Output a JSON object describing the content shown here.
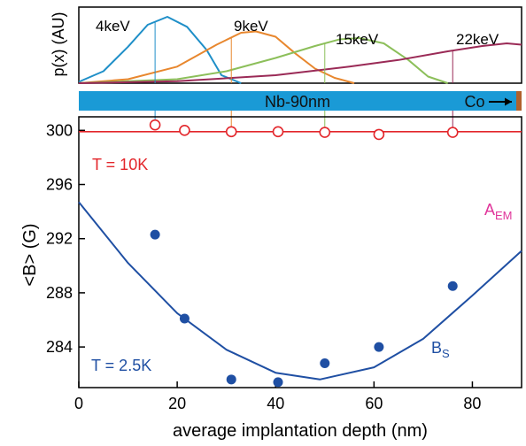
{
  "chart_data": [
    {
      "type": "line",
      "ylabel": "p(x) (AU)",
      "colors": {
        "4keV": "#1f8fc8",
        "9keV": "#e8872e",
        "15keV": "#8cbf5a",
        "22keV": "#9a2a56"
      },
      "series": [
        {
          "name": "4keV",
          "peak_depth": 18,
          "values_x": [
            0,
            5,
            10,
            14,
            18,
            22,
            26,
            29,
            33
          ],
          "values_y": [
            0.02,
            0.18,
            0.55,
            0.88,
            1.0,
            0.85,
            0.5,
            0.12,
            0.0
          ]
        },
        {
          "name": "9keV",
          "peak_depth": 36,
          "values_x": [
            0,
            10,
            20,
            28,
            33,
            36,
            40,
            44,
            48,
            52,
            56
          ],
          "values_y": [
            0.0,
            0.06,
            0.25,
            0.58,
            0.76,
            0.78,
            0.7,
            0.45,
            0.22,
            0.08,
            0.0
          ]
        },
        {
          "name": "15keV",
          "peak_depth": 57,
          "values_x": [
            0,
            20,
            30,
            40,
            48,
            53,
            57,
            62,
            67,
            71,
            75
          ],
          "values_y": [
            0.0,
            0.06,
            0.18,
            0.38,
            0.56,
            0.66,
            0.68,
            0.6,
            0.35,
            0.1,
            0.0
          ]
        },
        {
          "name": "22keV",
          "peak_depth": 88,
          "values_x": [
            0,
            20,
            40,
            55,
            65,
            75,
            82,
            87,
            90
          ],
          "values_y": [
            0.0,
            0.03,
            0.12,
            0.25,
            0.35,
            0.48,
            0.56,
            0.6,
            0.58
          ]
        }
      ],
      "mean_depths": [
        15.5,
        21.5,
        31,
        50,
        76
      ]
    },
    {
      "type": "scatter",
      "bar": {
        "label": "Nb-90nm",
        "co_label": "Co",
        "bar_color": "#1a9ad6",
        "co_color": "#b0612c"
      },
      "xlabel": "average implantation depth (nm)",
      "ylabel": "<B> (G)",
      "xlim": [
        0,
        90
      ],
      "ylim": [
        281,
        301
      ],
      "xticks": [
        0,
        20,
        40,
        60,
        80
      ],
      "yticks": [
        284,
        288,
        292,
        296,
        300
      ],
      "series": [
        {
          "name": "T = 10K",
          "color": "#e3262b",
          "marker": "open-circle",
          "x": [
            15.5,
            21.5,
            31,
            40.5,
            50,
            61,
            76
          ],
          "y": [
            300.4,
            300.0,
            299.9,
            299.9,
            299.85,
            299.7,
            299.85
          ],
          "ref_line": 299.9
        },
        {
          "name": "T = 2.5K",
          "color": "#1f4fa3",
          "marker": "filled-circle",
          "x": [
            15.5,
            21.5,
            31,
            40.5,
            50,
            61,
            76
          ],
          "y": [
            292.3,
            286.1,
            281.6,
            281.4,
            282.8,
            284.0,
            288.5
          ],
          "fit_label": "B",
          "fit_sub": "S",
          "fit_curve": {
            "x": [
              0,
              10,
              20,
              30,
              40,
              49,
              60,
              70,
              80,
              90
            ],
            "y": [
              294.7,
              290.2,
              286.5,
              283.8,
              282.1,
              281.6,
              282.5,
              284.6,
              287.8,
              291.1
            ]
          }
        }
      ],
      "annotations": [
        {
          "text": "A",
          "sub": "EM",
          "color": "#e0359a"
        },
        {
          "text": "T = 10K",
          "color": "#e3262b"
        },
        {
          "text": "T = 2.5K",
          "color": "#1f4fa3"
        }
      ]
    }
  ]
}
